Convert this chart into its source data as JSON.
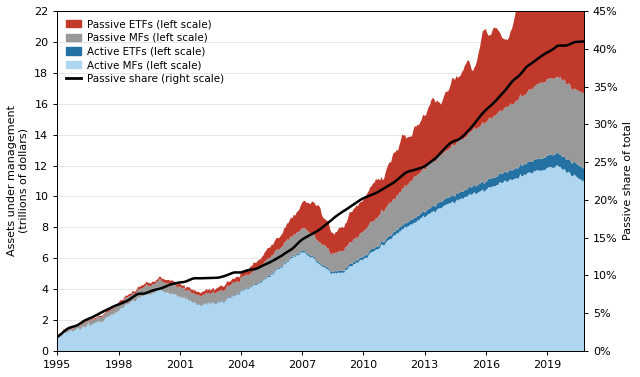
{
  "ylabel_left": "Assets under management\n(trillions of dollars)",
  "ylabel_right": "Passive share of total",
  "ylim_left": [
    0,
    22
  ],
  "ylim_right": [
    0,
    0.45
  ],
  "yticks_left": [
    0,
    2,
    4,
    6,
    8,
    10,
    12,
    14,
    16,
    18,
    20,
    22
  ],
  "yticks_right": [
    0,
    0.05,
    0.1,
    0.15,
    0.2,
    0.25,
    0.3,
    0.35,
    0.4,
    0.45
  ],
  "xticks": [
    1995,
    1998,
    2001,
    2004,
    2007,
    2010,
    2013,
    2016,
    2019
  ],
  "colors": {
    "passive_etf": "#C0392B",
    "passive_mf": "#999999",
    "active_etf": "#2471A3",
    "active_mf": "#AED6F1",
    "passive_share_line": "#000000"
  },
  "legend_labels": [
    "Passive ETFs (left scale)",
    "Passive MFs (left scale)",
    "Active ETFs (left scale)",
    "Active MFs (left scale)",
    "Passive share (right scale)"
  ]
}
